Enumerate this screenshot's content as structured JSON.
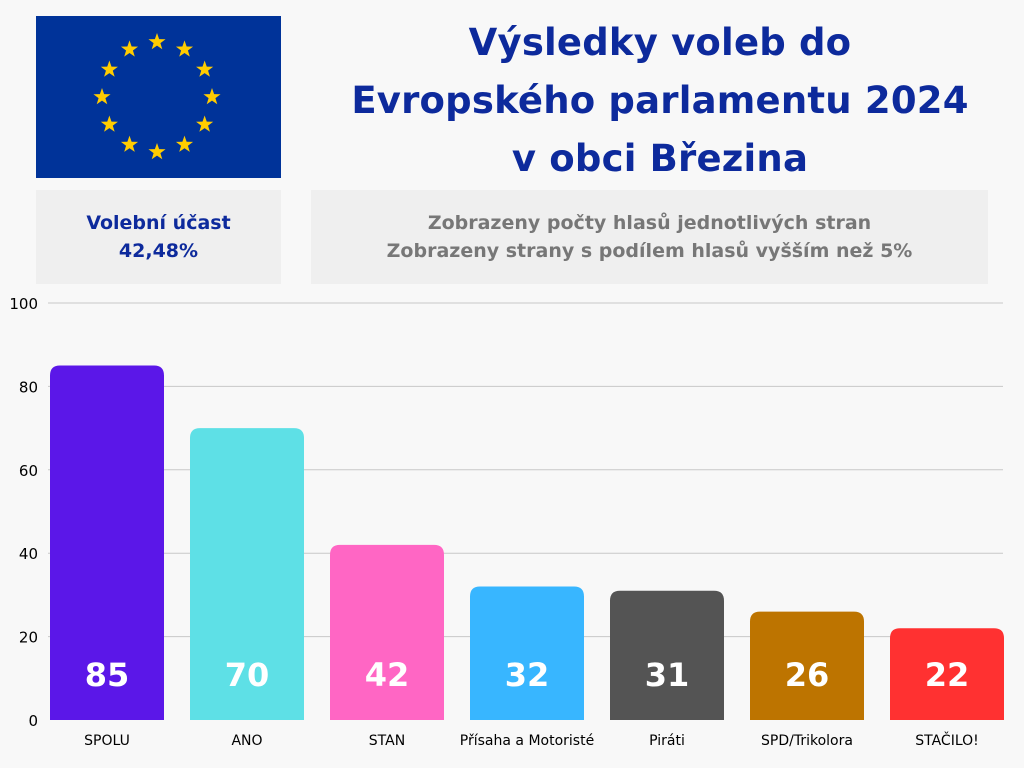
{
  "header": {
    "title_lines": [
      "Výsledky voleb do",
      "Evropského parlamentu 2024",
      "v obci Březina"
    ]
  },
  "turnout": {
    "label": "Volební účast",
    "value": "42,48%"
  },
  "info": {
    "line1": "Zobrazeny počty hlasů jednotlivých stran",
    "line2": "Zobrazeny strany s podílem hlasů vyšším než 5%"
  },
  "flag": {
    "icon": "eu-flag-icon",
    "background": "#003399",
    "star_color": "#FFCC00"
  },
  "chart_data": {
    "type": "bar",
    "categories": [
      "SPOLU",
      "ANO",
      "STAN",
      "Přísaha a Motoristé",
      "Piráti",
      "SPD/Trikolora",
      "STAČILO!"
    ],
    "values": [
      85,
      70,
      42,
      32,
      31,
      26,
      22
    ],
    "colors": [
      "#5b17e8",
      "#5ee0e6",
      "#ff66c4",
      "#38b6ff",
      "#545454",
      "#bd7400",
      "#ff3131"
    ],
    "ylim": [
      0,
      100
    ],
    "yticks": [
      0,
      20,
      40,
      60,
      80,
      100
    ],
    "grid": true,
    "value_labels_inside": true
  }
}
